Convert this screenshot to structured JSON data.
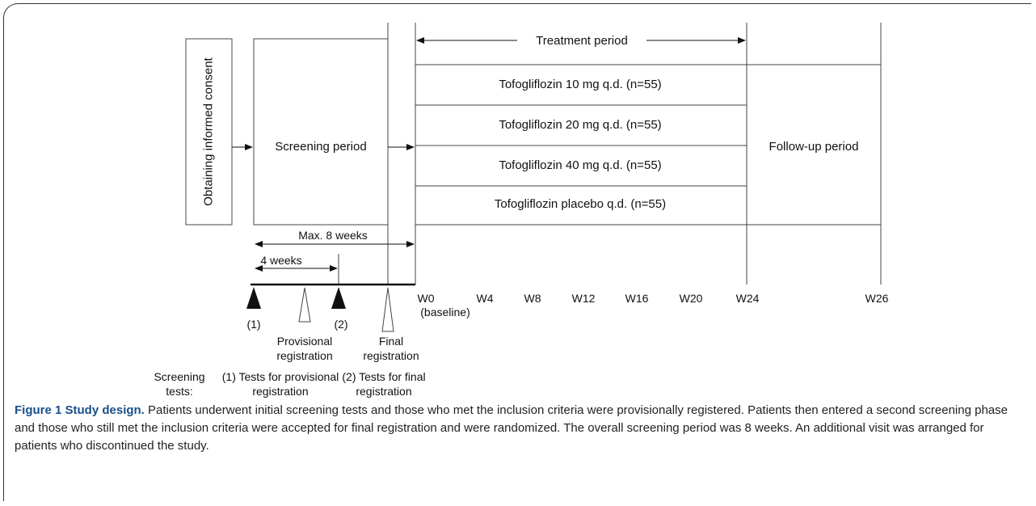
{
  "boxes": {
    "consent": "Obtaining informed consent",
    "screening": "Screening period",
    "followup": "Follow-up period"
  },
  "treatment_period": "Treatment period",
  "arms": [
    "Tofogliflozin 10 mg q.d. (n=55)",
    "Tofogliflozin 20 mg q.d. (n=55)",
    "Tofogliflozin 40 mg q.d. (n=55)",
    "Tofogliflozin placebo q.d. (n=55)"
  ],
  "durations": {
    "max": "Max. 8 weeks",
    "four": "4 weeks"
  },
  "timeline": {
    "weeks": [
      "W0",
      "W4",
      "W8",
      "W12",
      "W16",
      "W20",
      "W24",
      "W26"
    ],
    "baseline": "(baseline)"
  },
  "markers": {
    "first": "(1)",
    "second": "(2)",
    "provisional": "Provisional registration",
    "final": "Final registration"
  },
  "screening_tests": {
    "heading": "Screening tests:",
    "test1": "(1) Tests for provisional registration",
    "test2": "(2) Tests for final registration"
  },
  "caption": {
    "title": "Figure 1 Study design.",
    "text": "Patients underwent initial screening tests and those who met the inclusion criteria were provisionally registered. Patients then entered a second screening phase and those who still met the inclusion criteria were accepted for final registration and were randomized. The overall screening period was 8 weeks. An additional visit was arranged for patients who discontinued the study."
  }
}
